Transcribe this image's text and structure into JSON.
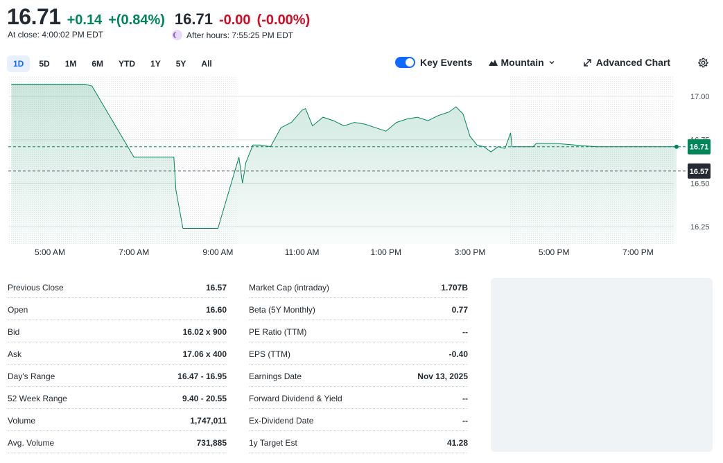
{
  "quote": {
    "price": "16.71",
    "change": "+0.14",
    "change_pct": "+(0.84%)",
    "close_label": "At close: 4:00:02 PM EDT",
    "after_price": "16.71",
    "after_change": "-0.00",
    "after_change_pct": "(-0.00%)",
    "after_label": "After hours: 7:55:25 PM EDT",
    "positive_color": "#008559",
    "negative_color": "#d60a22"
  },
  "range_tabs": [
    {
      "label": "1D",
      "active": true
    },
    {
      "label": "5D"
    },
    {
      "label": "1M"
    },
    {
      "label": "6M"
    },
    {
      "label": "YTD"
    },
    {
      "label": "1Y"
    },
    {
      "label": "5Y"
    },
    {
      "label": "All"
    }
  ],
  "toolbar": {
    "key_events_label": "Key Events",
    "key_events_on": true,
    "chart_type_label": "Mountain",
    "advanced_label": "Advanced Chart",
    "icons": [
      "mountain-icon",
      "chevron-down-icon",
      "expand-icon",
      "gear-icon"
    ]
  },
  "chart_data": {
    "type": "area",
    "x_tick_labels": [
      "5:00 AM",
      "7:00 AM",
      "9:00 AM",
      "11:00 AM",
      "1:00 PM",
      "3:00 PM",
      "5:00 PM",
      "7:00 PM"
    ],
    "y_tick_labels": [
      "17.00",
      "16.75",
      "16.50",
      "16.25"
    ],
    "ylim": [
      16.15,
      17.12
    ],
    "line_color": "#008559",
    "current_price": 16.71,
    "current_price_label": "16.71",
    "previous_close": 16.57,
    "previous_close_label": "16.57",
    "grid": true,
    "series": [
      {
        "x": [
          "4:05",
          "5:00",
          "5:50",
          "6:00",
          "7:00",
          "7:57",
          "8:00",
          "8:10",
          "8:40",
          "9:00",
          "9:30",
          "9:35",
          "9:40",
          "9:50",
          "10:00",
          "10:15",
          "10:30",
          "10:45",
          "11:00",
          "11:05",
          "11:15",
          "11:30",
          "11:45",
          "12:00",
          "12:15",
          "12:30",
          "12:45",
          "1:00",
          "1:15",
          "1:30",
          "1:45",
          "2:00",
          "2:15",
          "2:30",
          "2:40",
          "2:50",
          "3:00",
          "3:10",
          "3:20",
          "3:30",
          "3:40",
          "3:50",
          "3:58",
          "4:00",
          "4:30",
          "4:35",
          "5:00",
          "5:30",
          "6:00",
          "7:00",
          "7:55"
        ],
        "y": [
          17.07,
          17.07,
          17.07,
          17.06,
          16.65,
          16.65,
          16.46,
          16.24,
          16.24,
          16.24,
          16.65,
          16.5,
          16.62,
          16.72,
          16.72,
          16.71,
          16.82,
          16.85,
          16.92,
          16.93,
          16.83,
          16.88,
          16.86,
          16.83,
          16.85,
          16.84,
          16.82,
          16.8,
          16.85,
          16.87,
          16.88,
          16.86,
          16.89,
          16.91,
          16.94,
          16.9,
          16.77,
          16.72,
          16.71,
          16.68,
          16.71,
          16.7,
          16.79,
          16.71,
          16.71,
          16.73,
          16.73,
          16.72,
          16.71,
          16.71,
          16.71
        ]
      }
    ]
  },
  "stats_left": [
    {
      "label": "Previous Close",
      "value": "16.57"
    },
    {
      "label": "Open",
      "value": "16.60"
    },
    {
      "label": "Bid",
      "value": "16.02 x 900"
    },
    {
      "label": "Ask",
      "value": "17.06 x 400"
    },
    {
      "label": "Day's Range",
      "value": "16.47 - 16.95"
    },
    {
      "label": "52 Week Range",
      "value": "9.40 - 20.55"
    },
    {
      "label": "Volume",
      "value": "1,747,011"
    },
    {
      "label": "Avg. Volume",
      "value": "731,885"
    }
  ],
  "stats_right": [
    {
      "label": "Market Cap (intraday)",
      "value": "1.707B"
    },
    {
      "label": "Beta (5Y Monthly)",
      "value": "0.77"
    },
    {
      "label": "PE Ratio (TTM)",
      "value": "--"
    },
    {
      "label": "EPS (TTM)",
      "value": "-0.40"
    },
    {
      "label": "Earnings Date",
      "value": "Nov 13, 2025"
    },
    {
      "label": "Forward Dividend & Yield",
      "value": "--"
    },
    {
      "label": "Ex-Dividend Date",
      "value": "--"
    },
    {
      "label": "1y Target Est",
      "value": "41.28"
    }
  ]
}
